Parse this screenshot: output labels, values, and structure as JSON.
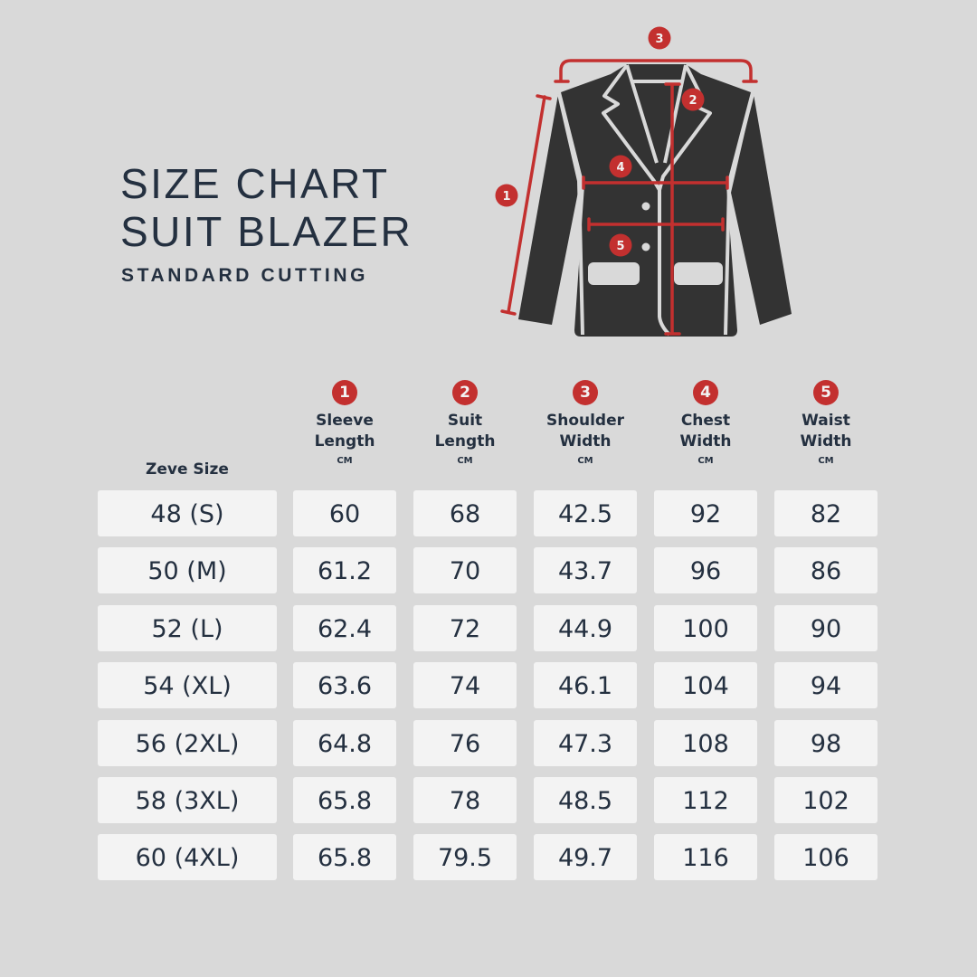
{
  "title_line1": "SIZE CHART",
  "title_line2": "SUIT BLAZER",
  "subtitle": "STANDARD CUTTING",
  "colors": {
    "background": "#d9d9d9",
    "accent": "#c3302f",
    "text": "#243040",
    "cell": "#f3f3f3",
    "jacket": "#333333"
  },
  "diagram": {
    "markers": [
      "1",
      "2",
      "3",
      "4",
      "5"
    ]
  },
  "table": {
    "size_header": "Zeve Size",
    "columns": [
      {
        "badge": "1",
        "line1": "Sleeve",
        "line2": "Length",
        "unit": "CM"
      },
      {
        "badge": "2",
        "line1": "Suit",
        "line2": "Length",
        "unit": "CM"
      },
      {
        "badge": "3",
        "line1": "Shoulder",
        "line2": "Width",
        "unit": "CM"
      },
      {
        "badge": "4",
        "line1": "Chest",
        "line2": "Width",
        "unit": "CM"
      },
      {
        "badge": "5",
        "line1": "Waist",
        "line2": "Width",
        "unit": "CM"
      }
    ],
    "rows": [
      [
        "48 (S)",
        "60",
        "68",
        "42.5",
        "92",
        "82"
      ],
      [
        "50 (M)",
        "61.2",
        "70",
        "43.7",
        "96",
        "86"
      ],
      [
        "52 (L)",
        "62.4",
        "72",
        "44.9",
        "100",
        "90"
      ],
      [
        "54 (XL)",
        "63.6",
        "74",
        "46.1",
        "104",
        "94"
      ],
      [
        "56 (2XL)",
        "64.8",
        "76",
        "47.3",
        "108",
        "98"
      ],
      [
        "58 (3XL)",
        "65.8",
        "78",
        "48.5",
        "112",
        "102"
      ],
      [
        "60 (4XL)",
        "65.8",
        "79.5",
        "49.7",
        "116",
        "106"
      ]
    ]
  }
}
